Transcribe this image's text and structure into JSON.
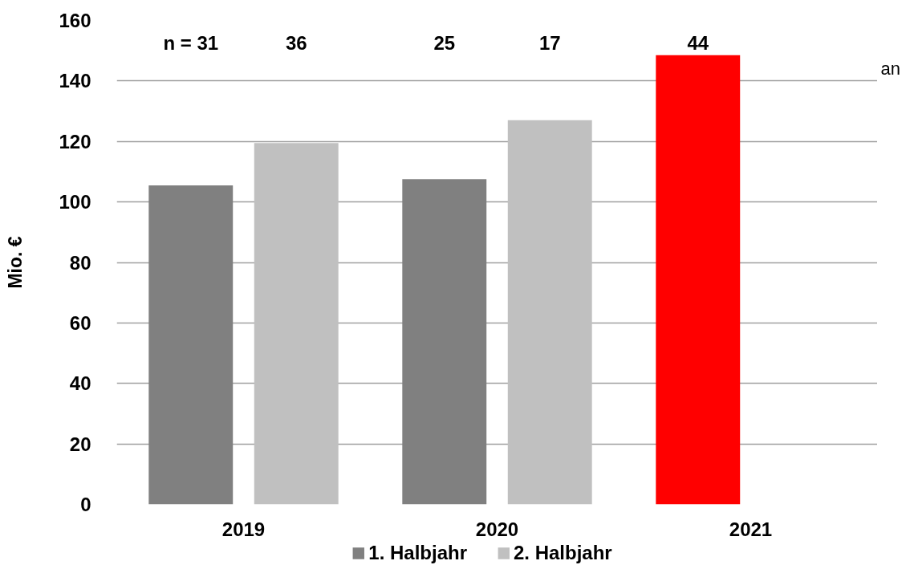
{
  "chart_data": {
    "type": "bar",
    "ylabel": "Mio. €",
    "categories": [
      "2019",
      "2020",
      "2021"
    ],
    "series": [
      {
        "name": "1. Halbjahr",
        "color": "#808080",
        "colors": [
          "#808080",
          "#808080",
          "#ff0000"
        ],
        "values": [
          105.5,
          107.5,
          148.5
        ]
      },
      {
        "name": "2. Halbjahr",
        "color": "#c0c0c0",
        "values": [
          119.5,
          127,
          null
        ]
      }
    ],
    "ylim": [
      0,
      160
    ],
    "yticks": [
      0,
      20,
      40,
      60,
      80,
      100,
      120,
      140,
      160
    ],
    "grid": "y",
    "legend": "bottom",
    "annotations": [
      "n = 31",
      "36",
      "25",
      "17",
      "44",
      "an"
    ]
  }
}
